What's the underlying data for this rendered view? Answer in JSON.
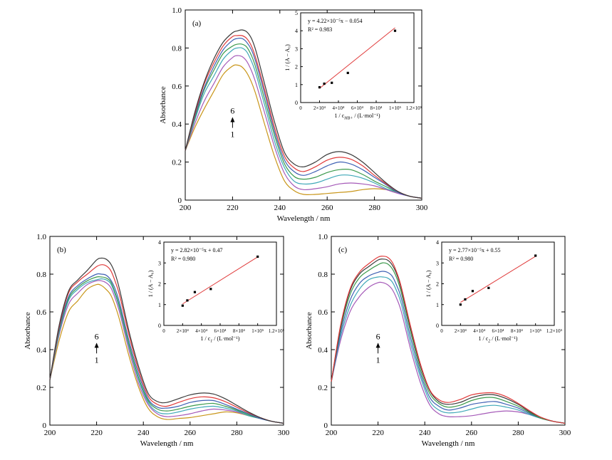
{
  "chart_data": [
    {
      "type": "line",
      "panel_label": "(a)",
      "xlabel": "Wavelength / nm",
      "ylabel": "Absorbance",
      "xlim": [
        200,
        300
      ],
      "ylim": [
        0,
        1.0
      ],
      "xticks": [
        "200",
        "220",
        "240",
        "260",
        "280",
        "300"
      ],
      "yticks": [
        "0",
        "0.2",
        "0.4",
        "0.6",
        "0.8",
        "1.0"
      ],
      "arrow_top": "6",
      "arrow_bottom": "1",
      "x": [
        200,
        204,
        208,
        212,
        216,
        220,
        222,
        224,
        226,
        228,
        230,
        234,
        238,
        242,
        246,
        250,
        255,
        260,
        265,
        270,
        275,
        280,
        285,
        290,
        295,
        300
      ],
      "series": [
        {
          "color": "#c9961a",
          "values": [
            0.26,
            0.38,
            0.48,
            0.57,
            0.66,
            0.705,
            0.71,
            0.7,
            0.67,
            0.62,
            0.55,
            0.38,
            0.22,
            0.1,
            0.05,
            0.03,
            0.03,
            0.035,
            0.04,
            0.045,
            0.055,
            0.06,
            0.055,
            0.04,
            0.02,
            0.01
          ]
        },
        {
          "color": "#a55ab8",
          "values": [
            0.26,
            0.4,
            0.52,
            0.61,
            0.7,
            0.75,
            0.76,
            0.755,
            0.73,
            0.68,
            0.61,
            0.44,
            0.27,
            0.14,
            0.075,
            0.055,
            0.06,
            0.07,
            0.085,
            0.09,
            0.085,
            0.075,
            0.055,
            0.035,
            0.02,
            0.01
          ]
        },
        {
          "color": "#3fa8b8",
          "values": [
            0.26,
            0.42,
            0.56,
            0.65,
            0.74,
            0.79,
            0.8,
            0.8,
            0.78,
            0.73,
            0.66,
            0.48,
            0.3,
            0.17,
            0.1,
            0.085,
            0.09,
            0.11,
            0.13,
            0.13,
            0.115,
            0.09,
            0.06,
            0.04,
            0.02,
            0.01
          ]
        },
        {
          "color": "#3c9a4c",
          "values": [
            0.26,
            0.43,
            0.58,
            0.68,
            0.77,
            0.81,
            0.82,
            0.82,
            0.805,
            0.76,
            0.69,
            0.51,
            0.33,
            0.19,
            0.125,
            0.11,
            0.12,
            0.145,
            0.16,
            0.16,
            0.135,
            0.1,
            0.07,
            0.04,
            0.02,
            0.01
          ]
        },
        {
          "color": "#3f61b4",
          "values": [
            0.26,
            0.44,
            0.59,
            0.7,
            0.79,
            0.84,
            0.85,
            0.85,
            0.83,
            0.79,
            0.72,
            0.54,
            0.35,
            0.21,
            0.15,
            0.13,
            0.15,
            0.18,
            0.2,
            0.19,
            0.16,
            0.12,
            0.08,
            0.04,
            0.02,
            0.01
          ]
        },
        {
          "color": "#e03a3a",
          "values": [
            0.26,
            0.45,
            0.61,
            0.72,
            0.81,
            0.86,
            0.865,
            0.865,
            0.85,
            0.81,
            0.74,
            0.56,
            0.37,
            0.23,
            0.17,
            0.15,
            0.175,
            0.21,
            0.225,
            0.215,
            0.18,
            0.13,
            0.085,
            0.045,
            0.02,
            0.01
          ]
        },
        {
          "color": "#3a3a3a",
          "values": [
            0.26,
            0.46,
            0.62,
            0.74,
            0.83,
            0.88,
            0.89,
            0.895,
            0.885,
            0.85,
            0.78,
            0.59,
            0.4,
            0.25,
            0.19,
            0.175,
            0.2,
            0.24,
            0.255,
            0.24,
            0.2,
            0.145,
            0.09,
            0.045,
            0.02,
            0.01
          ]
        }
      ],
      "inset": {
        "type": "scatter",
        "equation": "y = 4.22×10⁻⁵x − 0.054",
        "r2": "R² = 0.983",
        "xlabel": "1 / c_HB+ / (L·mol⁻¹)",
        "ylabel": "1 / (A − A₀)",
        "xlim": [
          0,
          120000
        ],
        "ylim": [
          0,
          5
        ],
        "xticks": [
          "0",
          "2×10⁴",
          "4×10⁴",
          "6×10⁴",
          "8×10⁴",
          "1×10⁵",
          "1.2×10⁵"
        ],
        "yticks": [
          "0",
          "1",
          "2",
          "3",
          "4",
          "5"
        ],
        "points": [
          [
            20000,
            0.85
          ],
          [
            25000,
            1.05
          ],
          [
            33000,
            1.1
          ],
          [
            50000,
            1.65
          ],
          [
            100000,
            4.0
          ]
        ],
        "fit": [
          [
            20000,
            0.79
          ],
          [
            100000,
            4.166
          ]
        ],
        "fit_color": "#e03a3a"
      }
    },
    {
      "type": "line",
      "panel_label": "(b)",
      "xlabel": "Wavelength / nm",
      "ylabel": "Absorbance",
      "xlim": [
        200,
        300
      ],
      "ylim": [
        0,
        1.0
      ],
      "xticks": [
        "200",
        "220",
        "240",
        "260",
        "280",
        "300"
      ],
      "yticks": [
        "0",
        "0.2",
        "0.4",
        "0.6",
        "0.8",
        "1.0"
      ],
      "arrow_top": "6",
      "arrow_bottom": "1",
      "x": [
        200,
        204,
        208,
        212,
        216,
        220,
        222,
        224,
        226,
        228,
        230,
        234,
        238,
        242,
        246,
        250,
        255,
        260,
        265,
        270,
        275,
        280,
        285,
        290,
        295,
        300
      ],
      "series": [
        {
          "color": "#c9961a",
          "values": [
            0.24,
            0.45,
            0.6,
            0.66,
            0.72,
            0.745,
            0.74,
            0.72,
            0.69,
            0.63,
            0.55,
            0.36,
            0.2,
            0.09,
            0.045,
            0.03,
            0.035,
            0.04,
            0.05,
            0.06,
            0.07,
            0.065,
            0.05,
            0.035,
            0.02,
            0.01
          ]
        },
        {
          "color": "#a55ab8",
          "values": [
            0.24,
            0.48,
            0.64,
            0.7,
            0.745,
            0.765,
            0.765,
            0.755,
            0.73,
            0.67,
            0.59,
            0.39,
            0.22,
            0.11,
            0.06,
            0.045,
            0.05,
            0.06,
            0.075,
            0.085,
            0.08,
            0.07,
            0.05,
            0.035,
            0.02,
            0.01
          ]
        },
        {
          "color": "#3fa8b8",
          "values": [
            0.24,
            0.49,
            0.66,
            0.72,
            0.755,
            0.77,
            0.775,
            0.77,
            0.75,
            0.69,
            0.61,
            0.41,
            0.24,
            0.12,
            0.07,
            0.06,
            0.07,
            0.085,
            0.095,
            0.1,
            0.09,
            0.075,
            0.05,
            0.035,
            0.02,
            0.01
          ]
        },
        {
          "color": "#3c9a4c",
          "values": [
            0.24,
            0.5,
            0.67,
            0.73,
            0.765,
            0.785,
            0.785,
            0.78,
            0.76,
            0.7,
            0.62,
            0.42,
            0.25,
            0.13,
            0.085,
            0.075,
            0.085,
            0.1,
            0.11,
            0.115,
            0.1,
            0.08,
            0.055,
            0.035,
            0.02,
            0.01
          ]
        },
        {
          "color": "#3f61b4",
          "values": [
            0.24,
            0.51,
            0.68,
            0.74,
            0.775,
            0.8,
            0.8,
            0.795,
            0.77,
            0.72,
            0.64,
            0.44,
            0.27,
            0.14,
            0.095,
            0.09,
            0.1,
            0.12,
            0.13,
            0.13,
            0.11,
            0.085,
            0.06,
            0.035,
            0.02,
            0.01
          ]
        },
        {
          "color": "#e03a3a",
          "values": [
            0.24,
            0.52,
            0.7,
            0.76,
            0.8,
            0.84,
            0.85,
            0.845,
            0.82,
            0.76,
            0.68,
            0.47,
            0.29,
            0.155,
            0.11,
            0.1,
            0.12,
            0.14,
            0.15,
            0.145,
            0.125,
            0.095,
            0.065,
            0.04,
            0.02,
            0.01
          ]
        },
        {
          "color": "#3a3a3a",
          "values": [
            0.24,
            0.53,
            0.71,
            0.77,
            0.82,
            0.875,
            0.885,
            0.88,
            0.855,
            0.8,
            0.71,
            0.49,
            0.31,
            0.17,
            0.125,
            0.12,
            0.14,
            0.16,
            0.17,
            0.165,
            0.14,
            0.105,
            0.07,
            0.04,
            0.02,
            0.01
          ]
        }
      ],
      "inset": {
        "type": "scatter",
        "equation": "y = 2.82×10⁻⁵x + 0.47",
        "r2": "R² = 0.980",
        "xlabel": "1 / c_1 / (L·mol⁻¹)",
        "ylabel": "1 / (A − A₀)",
        "xlim": [
          0,
          120000
        ],
        "ylim": [
          0,
          4
        ],
        "xticks": [
          "0",
          "2×10⁴",
          "4×10⁴",
          "6×10⁴",
          "8×10⁴",
          "1×10⁵",
          "1.2×10⁵"
        ],
        "yticks": [
          "0",
          "1",
          "2",
          "3",
          "4"
        ],
        "points": [
          [
            20000,
            0.95
          ],
          [
            25000,
            1.2
          ],
          [
            33000,
            1.6
          ],
          [
            50000,
            1.75
          ],
          [
            100000,
            3.3
          ]
        ],
        "fit": [
          [
            20000,
            1.034
          ],
          [
            100000,
            3.29
          ]
        ],
        "fit_color": "#e03a3a"
      }
    },
    {
      "type": "line",
      "panel_label": "(c)",
      "xlabel": "Wavelength / nm",
      "ylabel": "Absorbance",
      "xlim": [
        200,
        300
      ],
      "ylim": [
        0,
        1.0
      ],
      "xticks": [
        "200",
        "220",
        "240",
        "260",
        "280",
        "300"
      ],
      "yticks": [
        "0",
        "0.2",
        "0.4",
        "0.6",
        "0.8",
        "1.0"
      ],
      "arrow_top": "6",
      "arrow_bottom": "1",
      "x": [
        200,
        204,
        208,
        212,
        216,
        220,
        222,
        224,
        226,
        228,
        230,
        234,
        238,
        242,
        246,
        250,
        255,
        260,
        265,
        270,
        275,
        280,
        285,
        290,
        295,
        300
      ],
      "series": [
        {
          "color": "#a55ab8",
          "values": [
            0.23,
            0.45,
            0.6,
            0.68,
            0.73,
            0.755,
            0.755,
            0.745,
            0.72,
            0.67,
            0.6,
            0.4,
            0.23,
            0.11,
            0.06,
            0.045,
            0.045,
            0.05,
            0.06,
            0.07,
            0.075,
            0.07,
            0.055,
            0.035,
            0.02,
            0.01
          ]
        },
        {
          "color": "#3fa8b8",
          "values": [
            0.23,
            0.47,
            0.63,
            0.72,
            0.77,
            0.785,
            0.785,
            0.78,
            0.76,
            0.71,
            0.64,
            0.43,
            0.26,
            0.13,
            0.08,
            0.065,
            0.07,
            0.085,
            0.1,
            0.105,
            0.095,
            0.08,
            0.055,
            0.035,
            0.02,
            0.01
          ]
        },
        {
          "color": "#3f61b4",
          "values": [
            0.23,
            0.49,
            0.66,
            0.75,
            0.79,
            0.81,
            0.815,
            0.81,
            0.79,
            0.74,
            0.67,
            0.46,
            0.28,
            0.15,
            0.1,
            0.08,
            0.09,
            0.11,
            0.12,
            0.125,
            0.11,
            0.09,
            0.06,
            0.035,
            0.02,
            0.01
          ]
        },
        {
          "color": "#3c9a4c",
          "values": [
            0.23,
            0.51,
            0.69,
            0.78,
            0.82,
            0.85,
            0.86,
            0.855,
            0.83,
            0.78,
            0.7,
            0.49,
            0.3,
            0.17,
            0.115,
            0.095,
            0.105,
            0.13,
            0.145,
            0.145,
            0.125,
            0.1,
            0.065,
            0.035,
            0.02,
            0.01
          ]
        },
        {
          "color": "#3a3a3a",
          "values": [
            0.23,
            0.52,
            0.71,
            0.8,
            0.84,
            0.875,
            0.88,
            0.875,
            0.85,
            0.8,
            0.72,
            0.51,
            0.32,
            0.185,
            0.125,
            0.11,
            0.12,
            0.145,
            0.16,
            0.16,
            0.14,
            0.11,
            0.07,
            0.04,
            0.02,
            0.01
          ]
        },
        {
          "color": "#e03a3a",
          "values": [
            0.23,
            0.53,
            0.72,
            0.81,
            0.855,
            0.89,
            0.895,
            0.89,
            0.865,
            0.81,
            0.73,
            0.52,
            0.33,
            0.19,
            0.135,
            0.12,
            0.135,
            0.16,
            0.17,
            0.17,
            0.15,
            0.115,
            0.075,
            0.04,
            0.02,
            0.01
          ]
        }
      ],
      "inset": {
        "type": "scatter",
        "equation": "y = 2.77×10⁻⁵x + 0.55",
        "r2": "R² = 0.980",
        "xlabel": "1 / c_2 / (L·mol⁻¹)",
        "ylabel": "1 / (A − A₀)",
        "xlim": [
          0,
          120000
        ],
        "ylim": [
          0,
          4
        ],
        "xticks": [
          "0",
          "2×10⁴",
          "4×10⁴",
          "6×10⁴",
          "8×10⁴",
          "1×10⁵",
          "1.2×10⁵"
        ],
        "yticks": [
          "0",
          "1",
          "2",
          "3",
          "4"
        ],
        "points": [
          [
            20000,
            1.0
          ],
          [
            25000,
            1.25
          ],
          [
            33000,
            1.65
          ],
          [
            50000,
            1.8
          ],
          [
            100000,
            3.35
          ]
        ],
        "fit": [
          [
            20000,
            1.104
          ],
          [
            100000,
            3.32
          ]
        ],
        "fit_color": "#e03a3a"
      }
    }
  ]
}
